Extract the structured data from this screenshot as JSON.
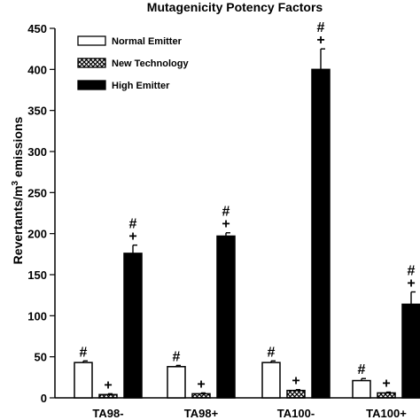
{
  "chart_data": {
    "type": "bar",
    "title": "Mutagenicity Potency Factors",
    "ylabel_main": "Revertants/m",
    "ylabel_sup": "3",
    "ylabel_tail": " emissions",
    "ylim": [
      0,
      450
    ],
    "yticks": [
      0,
      50,
      100,
      150,
      200,
      250,
      300,
      350,
      400,
      450
    ],
    "categories": [
      "TA98-",
      "TA98+",
      "TA100-",
      "TA100+"
    ],
    "series": [
      {
        "name": "Normal Emitter",
        "fill": "#ffffff",
        "pattern": "none",
        "values": [
          43,
          38,
          43,
          21
        ],
        "errors": [
          2,
          1.5,
          2,
          2.5
        ],
        "annotations": [
          [
            "#"
          ],
          [
            "#"
          ],
          [
            "#"
          ],
          [
            "#"
          ]
        ]
      },
      {
        "name": "New Technology",
        "fill": "#ffffff",
        "pattern": "crosshatch",
        "values": [
          4,
          5,
          9,
          6
        ],
        "errors": [
          1,
          1,
          1,
          1
        ],
        "annotations": [
          [
            "+"
          ],
          [
            "+"
          ],
          [
            "+"
          ],
          [
            "+"
          ]
        ]
      },
      {
        "name": "High Emitter",
        "fill": "#000000",
        "pattern": "none",
        "values": [
          176,
          197,
          400,
          114
        ],
        "errors": [
          10,
          4,
          25,
          15
        ],
        "annotations": [
          [
            "+",
            "#"
          ],
          [
            "+",
            "#"
          ],
          [
            "+",
            "#"
          ],
          [
            "+",
            "#"
          ]
        ]
      }
    ],
    "legend_position": "top-left",
    "grid": false
  }
}
